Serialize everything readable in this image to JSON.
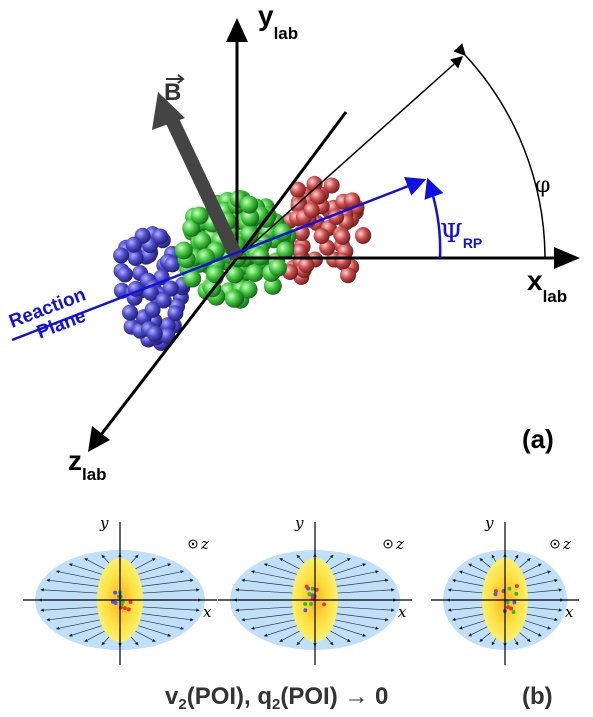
{
  "axes": {
    "y": {
      "main": "y",
      "sub": "lab"
    },
    "x": {
      "main": "x",
      "sub": "lab"
    },
    "z": {
      "main": "z",
      "sub": "lab"
    }
  },
  "field": "B",
  "angles": {
    "phi": "φ",
    "psi": {
      "main": "Ψ",
      "sub": "RP"
    }
  },
  "reaction_plane": [
    "Reaction",
    "Plane"
  ],
  "panel_a": "(a)",
  "panel_b": "(b)",
  "small_panels": [
    {
      "y": "y",
      "x": "x",
      "z": "z"
    },
    {
      "y": "y",
      "x": "x",
      "z": "z"
    },
    {
      "y": "y",
      "x": "x",
      "z": "z"
    }
  ],
  "caption": [
    "v",
    "2",
    "(POI), q",
    "2",
    "(POI) → 0"
  ]
}
